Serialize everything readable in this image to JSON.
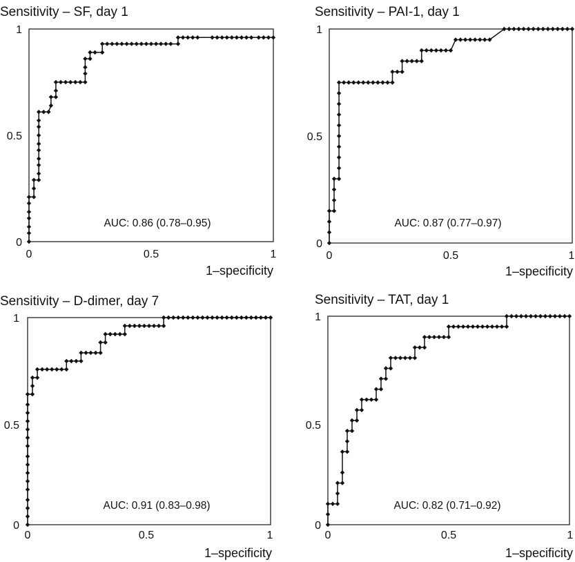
{
  "chart_data": [
    {
      "type": "line",
      "title": "Sensitivity – SF, day 1",
      "xlabel": "1–specificity",
      "ylabel": "",
      "xlim": [
        0,
        1
      ],
      "ylim": [
        0,
        1
      ],
      "xticks": [
        "0",
        "0.5",
        "1"
      ],
      "yticks": [
        "0",
        "0.5",
        "1"
      ],
      "annotation": "AUC: 0.86 (0.78–0.95)",
      "grid": false,
      "points": [
        [
          0,
          0
        ],
        [
          0,
          0.04
        ],
        [
          0,
          0.07
        ],
        [
          0,
          0.11
        ],
        [
          0,
          0.14
        ],
        [
          0,
          0.18
        ],
        [
          0,
          0.21
        ],
        [
          0.02,
          0.21
        ],
        [
          0.02,
          0.25
        ],
        [
          0.02,
          0.29
        ],
        [
          0.04,
          0.29
        ],
        [
          0.04,
          0.32
        ],
        [
          0.04,
          0.36
        ],
        [
          0.04,
          0.39
        ],
        [
          0.04,
          0.43
        ],
        [
          0.04,
          0.46
        ],
        [
          0.04,
          0.5
        ],
        [
          0.04,
          0.54
        ],
        [
          0.04,
          0.57
        ],
        [
          0.04,
          0.61
        ],
        [
          0.06,
          0.61
        ],
        [
          0.08,
          0.61
        ],
        [
          0.09,
          0.64
        ],
        [
          0.09,
          0.68
        ],
        [
          0.11,
          0.68
        ],
        [
          0.11,
          0.71
        ],
        [
          0.11,
          0.75
        ],
        [
          0.13,
          0.75
        ],
        [
          0.15,
          0.75
        ],
        [
          0.17,
          0.75
        ],
        [
          0.19,
          0.75
        ],
        [
          0.21,
          0.75
        ],
        [
          0.23,
          0.75
        ],
        [
          0.23,
          0.79
        ],
        [
          0.23,
          0.82
        ],
        [
          0.23,
          0.86
        ],
        [
          0.25,
          0.86
        ],
        [
          0.25,
          0.89
        ],
        [
          0.27,
          0.89
        ],
        [
          0.3,
          0.89
        ],
        [
          0.3,
          0.93
        ],
        [
          0.32,
          0.93
        ],
        [
          0.34,
          0.93
        ],
        [
          0.36,
          0.93
        ],
        [
          0.38,
          0.93
        ],
        [
          0.4,
          0.93
        ],
        [
          0.42,
          0.93
        ],
        [
          0.44,
          0.93
        ],
        [
          0.46,
          0.93
        ],
        [
          0.48,
          0.93
        ],
        [
          0.5,
          0.93
        ],
        [
          0.52,
          0.93
        ],
        [
          0.54,
          0.93
        ],
        [
          0.56,
          0.93
        ],
        [
          0.58,
          0.93
        ],
        [
          0.61,
          0.93
        ],
        [
          0.61,
          0.96
        ],
        [
          0.63,
          0.96
        ],
        [
          0.65,
          0.96
        ],
        [
          0.67,
          0.96
        ],
        [
          0.69,
          0.96
        ],
        [
          0.75,
          0.96
        ],
        [
          0.77,
          0.96
        ],
        [
          0.79,
          0.96
        ],
        [
          0.81,
          0.96
        ],
        [
          0.83,
          0.96
        ],
        [
          0.85,
          0.96
        ],
        [
          0.87,
          0.96
        ],
        [
          0.89,
          0.96
        ],
        [
          0.91,
          0.96
        ],
        [
          0.94,
          0.96
        ],
        [
          0.96,
          0.96
        ],
        [
          0.98,
          0.96
        ],
        [
          1,
          0.96
        ]
      ]
    },
    {
      "type": "line",
      "title": "Sensitivity – PAI-1, day 1",
      "xlabel": "1–specificity",
      "ylabel": "",
      "xlim": [
        0,
        1
      ],
      "ylim": [
        0,
        1
      ],
      "xticks": [
        "0",
        "0.5",
        "1"
      ],
      "yticks": [
        "0",
        "0.5",
        "1"
      ],
      "annotation": "AUC: 0.87 (0.77–0.97)",
      "grid": false,
      "points": [
        [
          0,
          0
        ],
        [
          0,
          0.05
        ],
        [
          0,
          0.1
        ],
        [
          0,
          0.15
        ],
        [
          0.02,
          0.15
        ],
        [
          0.02,
          0.2
        ],
        [
          0.02,
          0.25
        ],
        [
          0.02,
          0.3
        ],
        [
          0.04,
          0.3
        ],
        [
          0.04,
          0.35
        ],
        [
          0.04,
          0.4
        ],
        [
          0.04,
          0.45
        ],
        [
          0.04,
          0.5
        ],
        [
          0.04,
          0.55
        ],
        [
          0.04,
          0.6
        ],
        [
          0.04,
          0.65
        ],
        [
          0.04,
          0.7
        ],
        [
          0.04,
          0.75
        ],
        [
          0.06,
          0.75
        ],
        [
          0.08,
          0.75
        ],
        [
          0.1,
          0.75
        ],
        [
          0.12,
          0.75
        ],
        [
          0.14,
          0.75
        ],
        [
          0.16,
          0.75
        ],
        [
          0.18,
          0.75
        ],
        [
          0.2,
          0.75
        ],
        [
          0.22,
          0.75
        ],
        [
          0.24,
          0.75
        ],
        [
          0.26,
          0.75
        ],
        [
          0.26,
          0.8
        ],
        [
          0.28,
          0.8
        ],
        [
          0.3,
          0.8
        ],
        [
          0.3,
          0.85
        ],
        [
          0.32,
          0.85
        ],
        [
          0.34,
          0.85
        ],
        [
          0.36,
          0.85
        ],
        [
          0.38,
          0.85
        ],
        [
          0.38,
          0.9
        ],
        [
          0.4,
          0.9
        ],
        [
          0.42,
          0.9
        ],
        [
          0.44,
          0.9
        ],
        [
          0.46,
          0.9
        ],
        [
          0.48,
          0.9
        ],
        [
          0.5,
          0.9
        ],
        [
          0.52,
          0.95
        ],
        [
          0.54,
          0.95
        ],
        [
          0.56,
          0.95
        ],
        [
          0.58,
          0.95
        ],
        [
          0.6,
          0.95
        ],
        [
          0.62,
          0.95
        ],
        [
          0.64,
          0.95
        ],
        [
          0.66,
          0.95
        ],
        [
          0.72,
          1
        ],
        [
          0.74,
          1
        ],
        [
          0.76,
          1
        ],
        [
          0.78,
          1
        ],
        [
          0.8,
          1
        ],
        [
          0.82,
          1
        ],
        [
          0.84,
          1
        ],
        [
          0.86,
          1
        ],
        [
          0.88,
          1
        ],
        [
          0.9,
          1
        ],
        [
          0.92,
          1
        ],
        [
          0.94,
          1
        ],
        [
          0.96,
          1
        ],
        [
          0.98,
          1
        ],
        [
          1,
          1
        ]
      ]
    },
    {
      "type": "line",
      "title": "Sensitivity – D-dimer, day 7",
      "xlabel": "1–specificity",
      "ylabel": "",
      "xlim": [
        0,
        1
      ],
      "ylim": [
        0,
        1
      ],
      "xticks": [
        "0",
        "0.5",
        "1"
      ],
      "yticks": [
        "0",
        "0.5",
        "1"
      ],
      "annotation": "AUC: 0.91 (0.83–0.98)",
      "grid": false,
      "points": [
        [
          0,
          0
        ],
        [
          0,
          0.04
        ],
        [
          0,
          0.08
        ],
        [
          0,
          0.12
        ],
        [
          0,
          0.17
        ],
        [
          0,
          0.21
        ],
        [
          0,
          0.25
        ],
        [
          0,
          0.29
        ],
        [
          0,
          0.33
        ],
        [
          0,
          0.38
        ],
        [
          0,
          0.42
        ],
        [
          0,
          0.46
        ],
        [
          0,
          0.5
        ],
        [
          0,
          0.54
        ],
        [
          0,
          0.58
        ],
        [
          0,
          0.63
        ],
        [
          0.02,
          0.63
        ],
        [
          0.02,
          0.67
        ],
        [
          0.02,
          0.71
        ],
        [
          0.04,
          0.71
        ],
        [
          0.04,
          0.75
        ],
        [
          0.06,
          0.75
        ],
        [
          0.08,
          0.75
        ],
        [
          0.1,
          0.75
        ],
        [
          0.12,
          0.75
        ],
        [
          0.14,
          0.75
        ],
        [
          0.16,
          0.75
        ],
        [
          0.16,
          0.79
        ],
        [
          0.18,
          0.79
        ],
        [
          0.2,
          0.79
        ],
        [
          0.22,
          0.79
        ],
        [
          0.22,
          0.83
        ],
        [
          0.24,
          0.83
        ],
        [
          0.26,
          0.83
        ],
        [
          0.28,
          0.83
        ],
        [
          0.3,
          0.83
        ],
        [
          0.3,
          0.88
        ],
        [
          0.32,
          0.88
        ],
        [
          0.32,
          0.92
        ],
        [
          0.34,
          0.92
        ],
        [
          0.36,
          0.92
        ],
        [
          0.38,
          0.92
        ],
        [
          0.4,
          0.92
        ],
        [
          0.4,
          0.96
        ],
        [
          0.42,
          0.96
        ],
        [
          0.44,
          0.96
        ],
        [
          0.46,
          0.96
        ],
        [
          0.48,
          0.96
        ],
        [
          0.5,
          0.96
        ],
        [
          0.52,
          0.96
        ],
        [
          0.54,
          0.96
        ],
        [
          0.56,
          0.96
        ],
        [
          0.56,
          1
        ],
        [
          0.58,
          1
        ],
        [
          0.6,
          1
        ],
        [
          0.62,
          1
        ],
        [
          0.64,
          1
        ],
        [
          0.66,
          1
        ],
        [
          0.68,
          1
        ],
        [
          0.7,
          1
        ],
        [
          0.72,
          1
        ],
        [
          0.74,
          1
        ],
        [
          0.76,
          1
        ],
        [
          0.78,
          1
        ],
        [
          0.8,
          1
        ],
        [
          0.82,
          1
        ],
        [
          0.84,
          1
        ],
        [
          0.86,
          1
        ],
        [
          0.88,
          1
        ],
        [
          0.9,
          1
        ],
        [
          0.92,
          1
        ],
        [
          0.94,
          1
        ],
        [
          0.96,
          1
        ],
        [
          0.98,
          1
        ],
        [
          1,
          1
        ]
      ]
    },
    {
      "type": "line",
      "title": "Sensitivity – TAT, day 1",
      "xlabel": "1–specificity",
      "ylabel": "",
      "xlim": [
        0,
        1
      ],
      "ylim": [
        0,
        1
      ],
      "xticks": [
        "0",
        "0.5",
        "1"
      ],
      "yticks": [
        "0",
        "0.5",
        "1"
      ],
      "annotation": "AUC: 0.82 (0.71–0.92)",
      "grid": false,
      "points": [
        [
          0,
          0
        ],
        [
          0,
          0.05
        ],
        [
          0,
          0.1
        ],
        [
          0.02,
          0.1
        ],
        [
          0.04,
          0.1
        ],
        [
          0.04,
          0.15
        ],
        [
          0.04,
          0.2
        ],
        [
          0.06,
          0.2
        ],
        [
          0.06,
          0.25
        ],
        [
          0.06,
          0.35
        ],
        [
          0.08,
          0.35
        ],
        [
          0.08,
          0.4
        ],
        [
          0.08,
          0.45
        ],
        [
          0.1,
          0.45
        ],
        [
          0.1,
          0.5
        ],
        [
          0.12,
          0.5
        ],
        [
          0.12,
          0.55
        ],
        [
          0.14,
          0.55
        ],
        [
          0.14,
          0.6
        ],
        [
          0.16,
          0.6
        ],
        [
          0.18,
          0.6
        ],
        [
          0.2,
          0.6
        ],
        [
          0.2,
          0.65
        ],
        [
          0.22,
          0.65
        ],
        [
          0.22,
          0.7
        ],
        [
          0.24,
          0.7
        ],
        [
          0.24,
          0.75
        ],
        [
          0.26,
          0.75
        ],
        [
          0.26,
          0.8
        ],
        [
          0.28,
          0.8
        ],
        [
          0.3,
          0.8
        ],
        [
          0.32,
          0.8
        ],
        [
          0.34,
          0.8
        ],
        [
          0.36,
          0.8
        ],
        [
          0.36,
          0.85
        ],
        [
          0.38,
          0.85
        ],
        [
          0.4,
          0.85
        ],
        [
          0.4,
          0.9
        ],
        [
          0.42,
          0.9
        ],
        [
          0.44,
          0.9
        ],
        [
          0.46,
          0.9
        ],
        [
          0.48,
          0.9
        ],
        [
          0.5,
          0.9
        ],
        [
          0.5,
          0.95
        ],
        [
          0.52,
          0.95
        ],
        [
          0.54,
          0.95
        ],
        [
          0.56,
          0.95
        ],
        [
          0.58,
          0.95
        ],
        [
          0.6,
          0.95
        ],
        [
          0.62,
          0.95
        ],
        [
          0.64,
          0.95
        ],
        [
          0.66,
          0.95
        ],
        [
          0.68,
          0.95
        ],
        [
          0.7,
          0.95
        ],
        [
          0.72,
          0.95
        ],
        [
          0.74,
          0.95
        ],
        [
          0.74,
          1
        ],
        [
          0.76,
          1
        ],
        [
          0.78,
          1
        ],
        [
          0.8,
          1
        ],
        [
          0.82,
          1
        ],
        [
          0.84,
          1
        ],
        [
          0.86,
          1
        ],
        [
          0.88,
          1
        ],
        [
          0.9,
          1
        ],
        [
          0.92,
          1
        ],
        [
          0.94,
          1
        ],
        [
          0.96,
          1
        ],
        [
          0.98,
          1
        ],
        [
          1,
          1
        ]
      ]
    }
  ]
}
